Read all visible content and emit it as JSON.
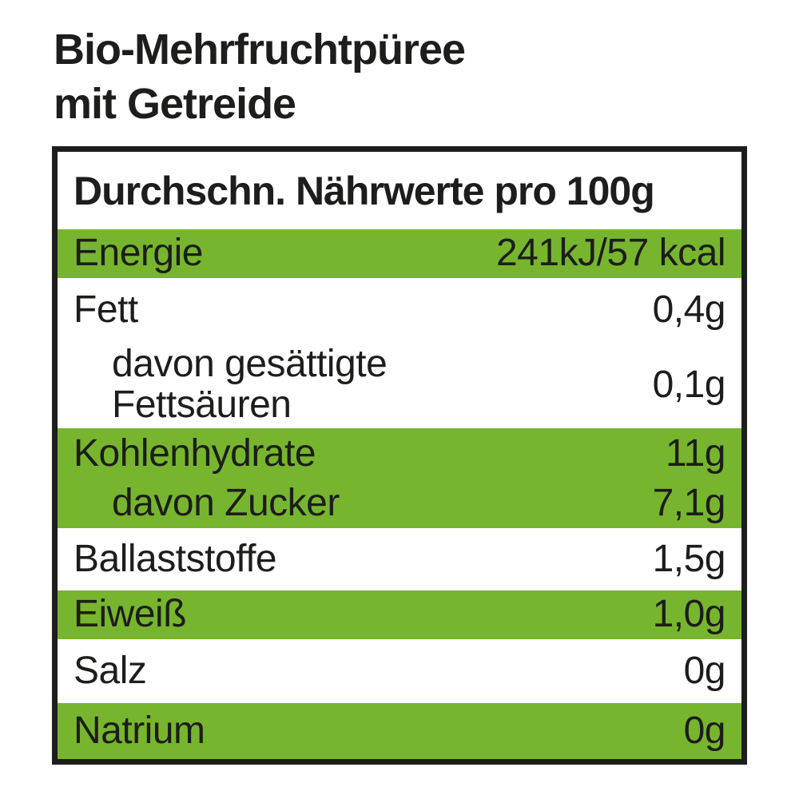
{
  "title": {
    "line1": "Bio-Mehrfruchtpüree",
    "line2": "mit Getreide"
  },
  "nutrition_table": {
    "header": "Durchschn. Nährwerte pro 100g",
    "rows": [
      {
        "label": "Energie",
        "value": "241kJ/57 kcal",
        "highlighted": true,
        "indented": false
      },
      {
        "label": "Fett",
        "value": "0,4g",
        "highlighted": false,
        "indented": false
      },
      {
        "label": "davon gesättigte Fettsäuren",
        "value": "0,1g",
        "highlighted": false,
        "indented": true
      },
      {
        "label": "Kohlenhydrate",
        "value": "11g",
        "highlighted": true,
        "indented": false
      },
      {
        "label": "davon Zucker",
        "value": "7,1g",
        "highlighted": true,
        "indented": true
      },
      {
        "label": "Ballaststoffe",
        "value": "1,5g",
        "highlighted": false,
        "indented": false
      },
      {
        "label": "Eiweiß",
        "value": "1,0g",
        "highlighted": true,
        "indented": false
      },
      {
        "label": "Salz",
        "value": "0g",
        "highlighted": false,
        "indented": false
      },
      {
        "label": "Natrium",
        "value": "0g",
        "highlighted": true,
        "indented": false
      }
    ]
  },
  "colors": {
    "highlight_green": "#77b52e",
    "text": "#1d1d1b",
    "border": "#1d1d1b",
    "background": "#ffffff"
  }
}
